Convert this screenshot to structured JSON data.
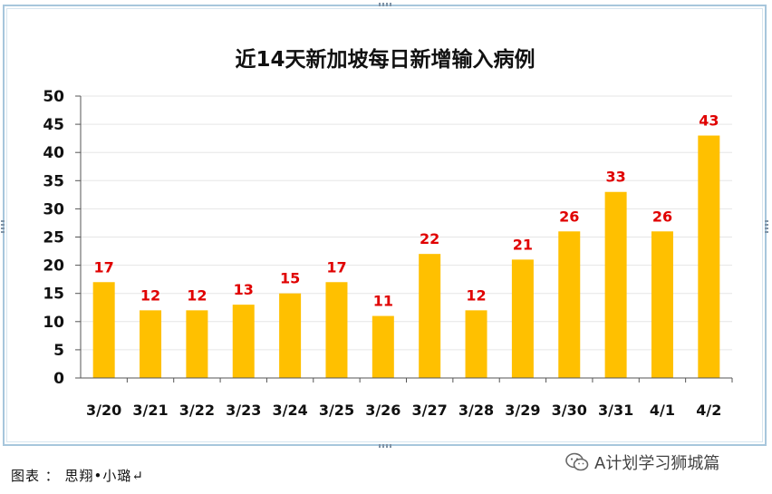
{
  "chart_data": {
    "type": "bar",
    "title": "近14天新加坡每日新增输入病例",
    "categories": [
      "3/20",
      "3/21",
      "3/22",
      "3/23",
      "3/24",
      "3/25",
      "3/26",
      "3/27",
      "3/28",
      "3/29",
      "3/30",
      "3/31",
      "4/1",
      "4/2"
    ],
    "values": [
      17,
      12,
      12,
      13,
      15,
      17,
      11,
      22,
      12,
      21,
      26,
      33,
      26,
      43
    ],
    "ylim": [
      0,
      50
    ],
    "yticks": [
      0,
      5,
      10,
      15,
      20,
      25,
      30,
      35,
      40,
      45,
      50
    ],
    "xlabel": "",
    "ylabel": "",
    "grid": true,
    "legend": "none",
    "bar_color": "#ffc000",
    "label_color": "#e00000"
  },
  "footer": {
    "caption": "图表 ： 思翔•小璐↵"
  },
  "watermark": {
    "text": "A计划学习狮城篇",
    "icon": "wechat-icon"
  }
}
